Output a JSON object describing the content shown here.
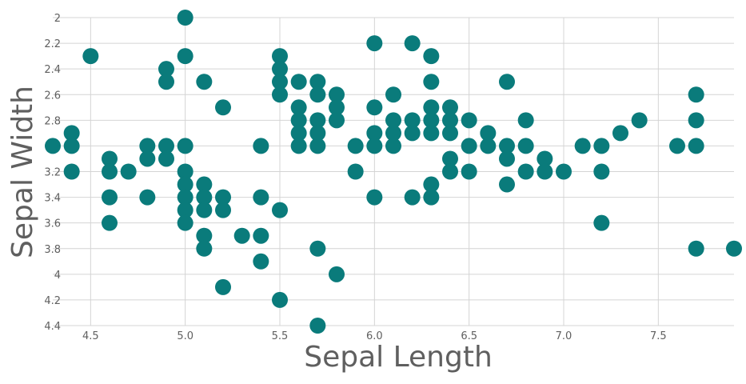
{
  "chart_data": {
    "type": "scatter",
    "xlabel": "Sepal Length",
    "ylabel": "Sepal Width",
    "xlim": [
      4.3,
      7.9
    ],
    "ylim": [
      2,
      4.4
    ],
    "y_axis_inverted": true,
    "grid": true,
    "x_ticks": [
      4.5,
      5.0,
      5.5,
      6.0,
      6.5,
      7.0,
      7.5
    ],
    "x_tick_labels": [
      "4.5",
      "5.0",
      "5.5",
      "6.0",
      "6.5",
      "7.0",
      "7.5"
    ],
    "y_ticks": [
      2,
      2.2,
      2.4,
      2.6,
      2.8,
      3,
      3.2,
      3.4,
      3.6,
      3.8,
      4,
      4.2,
      4.4
    ],
    "y_tick_labels": [
      "2",
      "2.2",
      "2.4",
      "2.6",
      "2.8",
      "3",
      "3.2",
      "3.4",
      "3.6",
      "3.8",
      "4",
      "4.2",
      "4.4"
    ],
    "marker_color": "#0a7b7b",
    "points": [
      [
        4.3,
        3.0
      ],
      [
        4.4,
        2.9
      ],
      [
        4.4,
        3.0
      ],
      [
        4.4,
        3.2
      ],
      [
        4.5,
        2.3
      ],
      [
        4.6,
        3.1
      ],
      [
        4.6,
        3.2
      ],
      [
        4.6,
        3.4
      ],
      [
        4.6,
        3.6
      ],
      [
        4.7,
        3.2
      ],
      [
        4.8,
        3.0
      ],
      [
        4.8,
        3.1
      ],
      [
        4.8,
        3.4
      ],
      [
        4.9,
        2.4
      ],
      [
        4.9,
        2.5
      ],
      [
        4.9,
        3.0
      ],
      [
        4.9,
        3.1
      ],
      [
        5.0,
        2.0
      ],
      [
        5.0,
        2.3
      ],
      [
        5.0,
        3.0
      ],
      [
        5.0,
        3.2
      ],
      [
        5.0,
        3.3
      ],
      [
        5.0,
        3.4
      ],
      [
        5.0,
        3.5
      ],
      [
        5.0,
        3.6
      ],
      [
        5.1,
        2.5
      ],
      [
        5.1,
        3.3
      ],
      [
        5.1,
        3.4
      ],
      [
        5.1,
        3.5
      ],
      [
        5.1,
        3.7
      ],
      [
        5.1,
        3.8
      ],
      [
        5.2,
        2.7
      ],
      [
        5.2,
        3.4
      ],
      [
        5.2,
        3.5
      ],
      [
        5.2,
        4.1
      ],
      [
        5.3,
        3.7
      ],
      [
        5.4,
        3.0
      ],
      [
        5.4,
        3.4
      ],
      [
        5.4,
        3.7
      ],
      [
        5.4,
        3.9
      ],
      [
        5.5,
        2.3
      ],
      [
        5.5,
        2.4
      ],
      [
        5.5,
        2.5
      ],
      [
        5.5,
        2.6
      ],
      [
        5.5,
        3.5
      ],
      [
        5.5,
        4.2
      ],
      [
        5.6,
        2.5
      ],
      [
        5.6,
        2.7
      ],
      [
        5.6,
        2.8
      ],
      [
        5.6,
        2.9
      ],
      [
        5.6,
        3.0
      ],
      [
        5.7,
        2.5
      ],
      [
        5.7,
        2.6
      ],
      [
        5.7,
        2.8
      ],
      [
        5.7,
        2.9
      ],
      [
        5.7,
        3.0
      ],
      [
        5.7,
        3.8
      ],
      [
        5.7,
        4.4
      ],
      [
        5.8,
        2.6
      ],
      [
        5.8,
        2.7
      ],
      [
        5.8,
        2.8
      ],
      [
        5.8,
        4.0
      ],
      [
        5.9,
        3.0
      ],
      [
        5.9,
        3.2
      ],
      [
        6.0,
        2.2
      ],
      [
        6.0,
        2.7
      ],
      [
        6.0,
        2.9
      ],
      [
        6.0,
        3.0
      ],
      [
        6.0,
        3.4
      ],
      [
        6.1,
        2.6
      ],
      [
        6.1,
        2.8
      ],
      [
        6.1,
        2.9
      ],
      [
        6.1,
        3.0
      ],
      [
        6.2,
        2.2
      ],
      [
        6.2,
        2.8
      ],
      [
        6.2,
        2.9
      ],
      [
        6.2,
        3.4
      ],
      [
        6.3,
        2.3
      ],
      [
        6.3,
        2.5
      ],
      [
        6.3,
        2.7
      ],
      [
        6.3,
        2.8
      ],
      [
        6.3,
        2.9
      ],
      [
        6.3,
        3.3
      ],
      [
        6.3,
        3.4
      ],
      [
        6.4,
        2.7
      ],
      [
        6.4,
        2.8
      ],
      [
        6.4,
        2.9
      ],
      [
        6.4,
        3.1
      ],
      [
        6.4,
        3.2
      ],
      [
        6.5,
        2.8
      ],
      [
        6.5,
        3.0
      ],
      [
        6.5,
        3.2
      ],
      [
        6.6,
        2.9
      ],
      [
        6.6,
        3.0
      ],
      [
        6.7,
        2.5
      ],
      [
        6.7,
        3.0
      ],
      [
        6.7,
        3.1
      ],
      [
        6.7,
        3.3
      ],
      [
        6.8,
        2.8
      ],
      [
        6.8,
        3.0
      ],
      [
        6.8,
        3.2
      ],
      [
        6.9,
        3.1
      ],
      [
        6.9,
        3.2
      ],
      [
        7.0,
        3.2
      ],
      [
        7.1,
        3.0
      ],
      [
        7.2,
        3.0
      ],
      [
        7.2,
        3.2
      ],
      [
        7.2,
        3.6
      ],
      [
        7.3,
        2.9
      ],
      [
        7.4,
        2.8
      ],
      [
        7.6,
        3.0
      ],
      [
        7.7,
        2.6
      ],
      [
        7.7,
        2.8
      ],
      [
        7.7,
        3.0
      ],
      [
        7.7,
        3.8
      ],
      [
        7.9,
        3.8
      ]
    ]
  }
}
